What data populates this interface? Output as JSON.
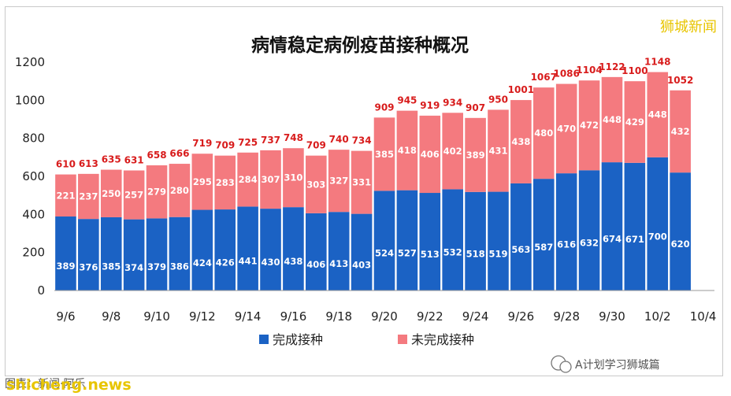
{
  "chart_data": {
    "type": "bar",
    "stacked": true,
    "title": "病情稳定病例疫苗接种概况",
    "categories": [
      "9/6",
      "9/7",
      "9/8",
      "9/9",
      "9/10",
      "9/11",
      "9/12",
      "9/13",
      "9/14",
      "9/15",
      "9/16",
      "9/17",
      "9/18",
      "9/19",
      "9/20",
      "9/21",
      "9/22",
      "9/23",
      "9/24",
      "9/25",
      "9/26",
      "9/27",
      "9/28",
      "9/29",
      "9/30",
      "10/1",
      "10/2",
      "10/3"
    ],
    "x_tick_labels": [
      "9/6",
      "9/8",
      "9/10",
      "9/12",
      "9/14",
      "9/16",
      "9/18",
      "9/20",
      "9/22",
      "9/24",
      "9/26",
      "9/28",
      "9/30",
      "10/2",
      "10/4"
    ],
    "series": [
      {
        "name": "完成接种",
        "color": "#1b62c4",
        "values": [
          389,
          376,
          385,
          374,
          379,
          386,
          424,
          426,
          441,
          430,
          438,
          406,
          413,
          403,
          524,
          527,
          513,
          532,
          518,
          519,
          563,
          587,
          616,
          632,
          674,
          671,
          700,
          620
        ]
      },
      {
        "name": "未完成接种",
        "color": "#f47a7f",
        "values": [
          221,
          237,
          250,
          257,
          279,
          280,
          295,
          283,
          284,
          307,
          310,
          303,
          327,
          331,
          385,
          418,
          406,
          402,
          389,
          431,
          438,
          480,
          470,
          472,
          448,
          429,
          448,
          432
        ]
      }
    ],
    "totals": [
      610,
      613,
      635,
      631,
      658,
      666,
      719,
      709,
      725,
      737,
      748,
      709,
      740,
      734,
      909,
      945,
      919,
      934,
      907,
      950,
      1001,
      1067,
      1086,
      1104,
      1122,
      1100,
      1148,
      1052
    ],
    "ylim": [
      0,
      1200
    ],
    "yticks": [
      0,
      200,
      400,
      600,
      800,
      1000,
      1200
    ],
    "legend_position": "bottom",
    "grid": false
  },
  "brand_text": "狮城新闻",
  "footer_left": "图表：新闻·阿乐",
  "footer_source": "A计划学习狮城篇",
  "site_url": "shicheng.news"
}
